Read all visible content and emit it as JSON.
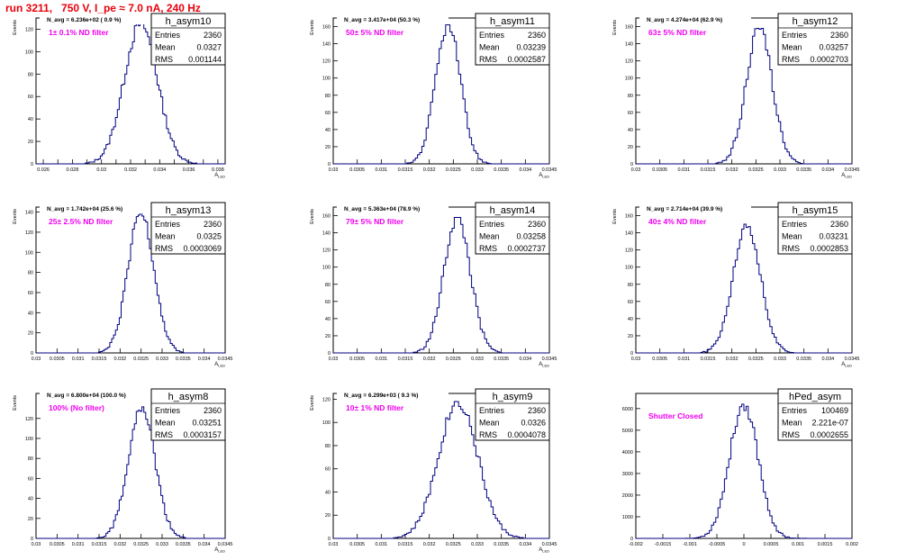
{
  "page": {
    "title": "run 3211,   750 V, I_pe ≈ 7.0 nA, 240 Hz",
    "colors": {
      "title": "#e8000b",
      "annotation": "#ee00ee",
      "histogram": "#00007f",
      "frame": "#000000"
    }
  },
  "chart_data": [
    {
      "type": "histogram",
      "name": "h_asym10",
      "header": "N_avg = 6.236e+02 ( 0.9 %)",
      "annotation": "1± 0.1% ND filter",
      "stats": {
        "entries": "2360",
        "mean": "0.0327",
        "rms": "0.001144"
      },
      "ylabel": "Events",
      "xlabel": "A_LED",
      "xlim": [
        0.0255,
        0.0385
      ],
      "ylim": [
        0,
        130
      ],
      "xticks": [
        0.026,
        0.027,
        0.028,
        0.029,
        0.03,
        0.031,
        0.032,
        0.033,
        0.034,
        0.035,
        0.036,
        0.037,
        0.038
      ],
      "xtick_labels": [
        "0.026",
        "",
        "0.028",
        "",
        "0.03",
        "",
        "0.032",
        "",
        "0.034",
        "",
        "0.036",
        "",
        "0.038"
      ],
      "yticks": [
        0,
        20,
        40,
        60,
        80,
        100,
        120
      ],
      "ytick_labels": [
        "0",
        "20",
        "40",
        "60",
        "80",
        "100",
        "120"
      ],
      "peak": 125,
      "mean": 0.0327,
      "sigma": 0.00114
    },
    {
      "type": "histogram",
      "name": "h_asym11",
      "header": "N_avg = 3.417e+04 (50.3 %)",
      "annotation": "50± 5% ND filter",
      "stats": {
        "entries": "2360",
        "mean": "0.03239",
        "rms": "0.0002587"
      },
      "ylabel": "Events",
      "xlabel": "A_LED",
      "xlim": [
        0.03,
        0.0345
      ],
      "ylim": [
        0,
        170
      ],
      "xticks": [
        0.03,
        0.0305,
        0.031,
        0.0315,
        0.032,
        0.0325,
        0.033,
        0.0335,
        0.034,
        0.0345
      ],
      "xtick_labels": [
        "0.03",
        "0.0305",
        "0.031",
        "0.0315",
        "0.032",
        "0.0325",
        "0.033",
        "0.0335",
        "0.034",
        "0.0345"
      ],
      "yticks": [
        0,
        20,
        40,
        60,
        80,
        100,
        120,
        140,
        160
      ],
      "ytick_labels": [
        "0",
        "20",
        "40",
        "60",
        "80",
        "100",
        "120",
        "140",
        "160"
      ],
      "peak": 162,
      "mean": 0.03239,
      "sigma": 0.000259
    },
    {
      "type": "histogram",
      "name": "h_asym12",
      "header": "N_avg = 4.274e+04 (62.9 %)",
      "annotation": "63± 5% ND filter",
      "stats": {
        "entries": "2360",
        "mean": "0.03257",
        "rms": "0.0002703"
      },
      "ylabel": "Events",
      "xlabel": "A_LED",
      "xlim": [
        0.03,
        0.0345
      ],
      "ylim": [
        0,
        170
      ],
      "xticks": [
        0.03,
        0.0305,
        0.031,
        0.0315,
        0.032,
        0.0325,
        0.033,
        0.0335,
        0.034,
        0.0345
      ],
      "xtick_labels": [
        "0.03",
        "0.0305",
        "0.031",
        "0.0315",
        "0.032",
        "0.0325",
        "0.033",
        "0.0335",
        "0.034",
        "0.0345"
      ],
      "yticks": [
        0,
        20,
        40,
        60,
        80,
        100,
        120,
        140,
        160
      ],
      "ytick_labels": [
        "0",
        "20",
        "40",
        "60",
        "80",
        "100",
        "120",
        "140",
        "160"
      ],
      "peak": 158,
      "mean": 0.03257,
      "sigma": 0.00027
    },
    {
      "type": "histogram",
      "name": "h_asym13",
      "header": "N_avg = 1.742e+04 (25.6 %)",
      "annotation": "25± 2.5% ND filter",
      "stats": {
        "entries": "2360",
        "mean": "0.0325",
        "rms": "0.0003069"
      },
      "ylabel": "Events",
      "xlabel": "A_LED",
      "xlim": [
        0.03,
        0.0345
      ],
      "ylim": [
        0,
        145
      ],
      "xticks": [
        0.03,
        0.0305,
        0.031,
        0.0315,
        0.032,
        0.0325,
        0.033,
        0.0335,
        0.034,
        0.0345
      ],
      "xtick_labels": [
        "0.03",
        "0.0305",
        "0.031",
        "0.0315",
        "0.032",
        "0.0325",
        "0.033",
        "0.0335",
        "0.034",
        "0.0345"
      ],
      "yticks": [
        0,
        20,
        40,
        60,
        80,
        100,
        120,
        140
      ],
      "ytick_labels": [
        "0",
        "20",
        "40",
        "60",
        "80",
        "100",
        "120",
        "140"
      ],
      "peak": 140,
      "mean": 0.0325,
      "sigma": 0.000307
    },
    {
      "type": "histogram",
      "name": "h_asym14",
      "header": "N_avg = 5.363e+04 (78.9 %)",
      "annotation": "79± 5% ND filter",
      "stats": {
        "entries": "2360",
        "mean": "0.03258",
        "rms": "0.0002737"
      },
      "ylabel": "Events",
      "xlabel": "A_LED",
      "xlim": [
        0.03,
        0.0345
      ],
      "ylim": [
        0,
        170
      ],
      "xticks": [
        0.03,
        0.0305,
        0.031,
        0.0315,
        0.032,
        0.0325,
        0.033,
        0.0335,
        0.034,
        0.0345
      ],
      "xtick_labels": [
        "0.03",
        "0.0305",
        "0.031",
        "0.0315",
        "0.032",
        "0.0325",
        "0.033",
        "0.0335",
        "0.034",
        "0.0345"
      ],
      "yticks": [
        0,
        20,
        40,
        60,
        80,
        100,
        120,
        140,
        160
      ],
      "ytick_labels": [
        "0",
        "20",
        "40",
        "60",
        "80",
        "100",
        "120",
        "140",
        "160"
      ],
      "peak": 158,
      "mean": 0.03258,
      "sigma": 0.000274
    },
    {
      "type": "histogram",
      "name": "h_asym15",
      "header": "N_avg = 2.714e+04 (39.9 %)",
      "annotation": "40± 4% ND filter",
      "stats": {
        "entries": "2360",
        "mean": "0.03231",
        "rms": "0.0002853"
      },
      "ylabel": "Events",
      "xlabel": "A_LED",
      "xlim": [
        0.03,
        0.0345
      ],
      "ylim": [
        0,
        170
      ],
      "xticks": [
        0.03,
        0.0305,
        0.031,
        0.0315,
        0.032,
        0.0325,
        0.033,
        0.0335,
        0.034,
        0.0345
      ],
      "xtick_labels": [
        "0.03",
        "0.0305",
        "0.031",
        "0.0315",
        "0.032",
        "0.0325",
        "0.033",
        "0.0335",
        "0.034",
        "0.0345"
      ],
      "yticks": [
        0,
        20,
        40,
        60,
        80,
        100,
        120,
        140,
        160
      ],
      "ytick_labels": [
        "0",
        "20",
        "40",
        "60",
        "80",
        "100",
        "120",
        "140",
        "160"
      ],
      "peak": 150,
      "mean": 0.03231,
      "sigma": 0.000285
    },
    {
      "type": "histogram",
      "name": "h_asym8",
      "header": "N_avg = 6.800e+04 (100.0 %)",
      "annotation": "100% (No filter)",
      "stats": {
        "entries": "2360",
        "mean": "0.03251",
        "rms": "0.0003157"
      },
      "ylabel": "Events",
      "xlabel": "A_LED",
      "xlim": [
        0.03,
        0.0345
      ],
      "ylim": [
        0,
        145
      ],
      "xticks": [
        0.03,
        0.0305,
        0.031,
        0.0315,
        0.032,
        0.0325,
        0.033,
        0.0335,
        0.034,
        0.0345
      ],
      "xtick_labels": [
        "0.03",
        "0.0305",
        "0.031",
        "0.0315",
        "0.032",
        "0.0325",
        "0.033",
        "0.0335",
        "0.034",
        "0.0345"
      ],
      "yticks": [
        0,
        20,
        40,
        60,
        80,
        100,
        120
      ],
      "ytick_labels": [
        "0",
        "20",
        "40",
        "60",
        "80",
        "100",
        "120"
      ],
      "peak": 132,
      "mean": 0.03251,
      "sigma": 0.000316
    },
    {
      "type": "histogram",
      "name": "h_asym9",
      "header": "N_avg = 6.299e+03 ( 9.3 %)",
      "annotation": "10± 1% ND filter",
      "stats": {
        "entries": "2360",
        "mean": "0.0326",
        "rms": "0.0004078"
      },
      "ylabel": "Events",
      "xlabel": "A_LED",
      "xlim": [
        0.03,
        0.0345
      ],
      "ylim": [
        0,
        125
      ],
      "xticks": [
        0.03,
        0.0305,
        0.031,
        0.0315,
        0.032,
        0.0325,
        0.033,
        0.0335,
        0.034,
        0.0345
      ],
      "xtick_labels": [
        "0.03",
        "0.0305",
        "0.031",
        "0.0315",
        "0.032",
        "0.0325",
        "0.033",
        "0.0335",
        "0.034",
        "0.0345"
      ],
      "yticks": [
        0,
        20,
        40,
        60,
        80,
        100,
        120
      ],
      "ytick_labels": [
        "0",
        "20",
        "40",
        "60",
        "80",
        "100",
        "120"
      ],
      "peak": 118,
      "mean": 0.0326,
      "sigma": 0.000408
    },
    {
      "type": "histogram",
      "name": "hPed_asym",
      "header": "",
      "annotation": "Shutter Closed",
      "stats": {
        "entries": "100469",
        "mean": "2.221e-07",
        "rms": "0.0002655"
      },
      "ylabel": "",
      "xlabel": "",
      "xlim": [
        -0.002,
        0.002
      ],
      "ylim": [
        0,
        6700
      ],
      "xticks": [
        -0.002,
        -0.0015,
        -0.001,
        -0.0005,
        0,
        0.0005,
        0.001,
        0.0015,
        0.002
      ],
      "xtick_labels": [
        "-0.002",
        "-0.0015",
        "-0.001",
        "-0.0005",
        "0",
        "0.0005",
        "0.001",
        "0.0015",
        "0.002"
      ],
      "yticks": [
        0,
        1000,
        2000,
        3000,
        4000,
        5000,
        6000
      ],
      "ytick_labels": [
        "0",
        "1000",
        "2000",
        "3000",
        "4000",
        "5000",
        "6000"
      ],
      "peak": 6200,
      "mean": 0.0,
      "sigma": 0.000266
    }
  ]
}
